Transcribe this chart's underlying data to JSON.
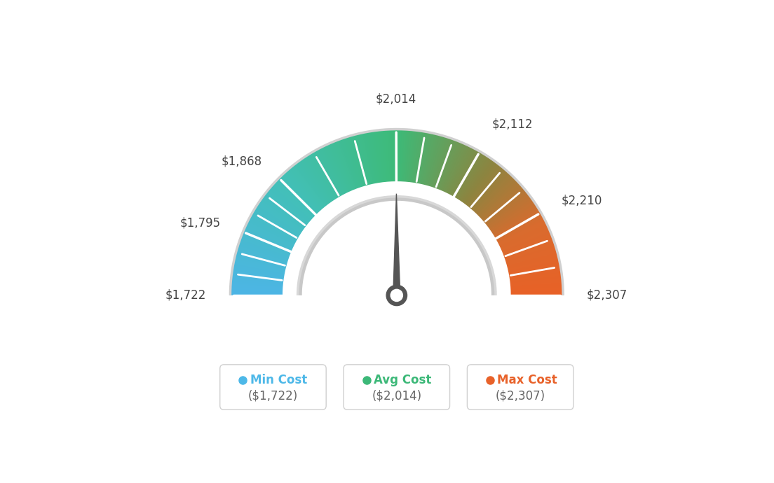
{
  "min_val": 1722,
  "avg_val": 2014,
  "max_val": 2307,
  "tick_labels": [
    "$1,722",
    "$1,795",
    "$1,868",
    "$2,014",
    "$2,112",
    "$2,210",
    "$2,307"
  ],
  "tick_values": [
    1722,
    1795,
    1868,
    2014,
    2112,
    2210,
    2307
  ],
  "legend": [
    {
      "label": "Min Cost",
      "sublabel": "($1,722)",
      "color": "#4db8e8"
    },
    {
      "label": "Avg Cost",
      "sublabel": "($2,014)",
      "color": "#3cb878"
    },
    {
      "label": "Max Cost",
      "sublabel": "($2,307)",
      "color": "#e8622a"
    }
  ],
  "background_color": "#ffffff",
  "needle_value": 2014,
  "colors_keypoints": [
    [
      0.0,
      [
        0.3,
        0.71,
        0.9
      ]
    ],
    [
      0.25,
      [
        0.26,
        0.75,
        0.72
      ]
    ],
    [
      0.5,
      [
        0.24,
        0.73,
        0.47
      ]
    ],
    [
      0.7,
      [
        0.55,
        0.52,
        0.25
      ]
    ],
    [
      0.85,
      [
        0.85,
        0.42,
        0.18
      ]
    ],
    [
      1.0,
      [
        0.91,
        0.38,
        0.15
      ]
    ]
  ]
}
